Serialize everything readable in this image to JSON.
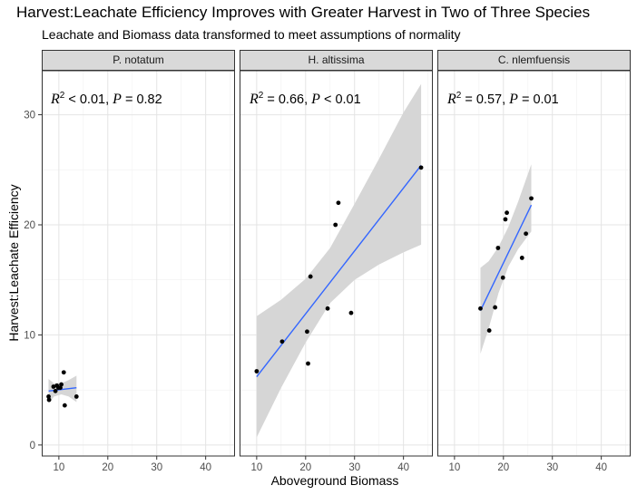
{
  "title": "Harvest:Leachate Efficiency Improves with Greater Harvest in Two of Three Species",
  "subtitle": "Leachate and Biomass data transformed to meet assumptions of normality",
  "chart_data": {
    "type": "scatter",
    "xlabel": "Aboveground Biomass",
    "ylabel": "Harvest:Leachate Efficiency",
    "xlim": [
      6.5,
      46
    ],
    "ylim": [
      -1,
      34
    ],
    "xticks": [
      10,
      20,
      30,
      40
    ],
    "yticks": [
      0,
      10,
      20,
      30
    ],
    "grid": true,
    "smooth": "linear fit with confidence band",
    "colors": {
      "fit_line": "#3366ff",
      "band": "#d6d6d6",
      "points": "#000000",
      "strip_bg": "#d9d9d9"
    },
    "panels": [
      {
        "name": "P. notatum",
        "stat": {
          "r2_prefix": "R",
          "r2_exp": "2",
          "r2_text": " < 0.01, ",
          "p_label": "P",
          "p_text": " = 0.82"
        },
        "points": [
          [
            7.9,
            4.4
          ],
          [
            8.0,
            4.1
          ],
          [
            8.9,
            5.3
          ],
          [
            9.3,
            4.9
          ],
          [
            9.6,
            5.4
          ],
          [
            9.9,
            5.2
          ],
          [
            10.3,
            5.2
          ],
          [
            10.5,
            5.5
          ],
          [
            11.0,
            6.6
          ],
          [
            11.2,
            3.6
          ],
          [
            13.6,
            4.4
          ]
        ],
        "fit": {
          "x": [
            7.9,
            13.6
          ],
          "y": [
            4.9,
            5.2
          ]
        },
        "band": {
          "x": [
            7.9,
            9.0,
            10.5,
            12.0,
            13.6
          ],
          "lower": [
            3.8,
            4.4,
            4.6,
            4.4,
            3.9
          ],
          "upper": [
            6.0,
            5.6,
            5.6,
            5.9,
            6.3
          ]
        }
      },
      {
        "name": "H. altissima",
        "stat": {
          "r2_prefix": "R",
          "r2_exp": "2",
          "r2_text": " = 0.66, ",
          "p_label": "P",
          "p_text": " < 0.01"
        },
        "points": [
          [
            10.0,
            6.7
          ],
          [
            15.2,
            9.4
          ],
          [
            20.3,
            10.3
          ],
          [
            20.5,
            7.4
          ],
          [
            21.0,
            15.3
          ],
          [
            24.5,
            12.4
          ],
          [
            26.1,
            20.0
          ],
          [
            26.7,
            22.0
          ],
          [
            29.3,
            12.0
          ],
          [
            43.6,
            25.2
          ]
        ],
        "fit": {
          "x": [
            10.0,
            43.6
          ],
          "y": [
            6.2,
            25.4
          ]
        },
        "band": {
          "x": [
            10.0,
            15.0,
            20.0,
            25.0,
            30.0,
            35.0,
            40.0,
            43.6
          ],
          "lower": [
            0.7,
            5.2,
            9.3,
            12.9,
            15.0,
            16.4,
            17.5,
            18.2
          ],
          "upper": [
            11.7,
            13.2,
            15.1,
            17.9,
            21.9,
            26.0,
            30.2,
            32.8
          ]
        }
      },
      {
        "name": "C. nlemfuensis",
        "stat": {
          "r2_prefix": "R",
          "r2_exp": "2",
          "r2_text": " = 0.57, ",
          "p_label": "P",
          "p_text": " = 0.01"
        },
        "points": [
          [
            15.3,
            12.4
          ],
          [
            17.1,
            10.4
          ],
          [
            18.3,
            12.5
          ],
          [
            18.9,
            17.9
          ],
          [
            19.9,
            15.2
          ],
          [
            20.4,
            20.5
          ],
          [
            20.7,
            21.1
          ],
          [
            23.8,
            17.0
          ],
          [
            24.6,
            19.2
          ],
          [
            25.7,
            22.4
          ]
        ],
        "fit": {
          "x": [
            15.3,
            25.7
          ],
          "y": [
            12.2,
            21.8
          ]
        },
        "band": {
          "x": [
            15.3,
            17.0,
            19.0,
            21.0,
            23.0,
            25.7
          ],
          "lower": [
            8.3,
            10.6,
            13.8,
            16.2,
            17.8,
            19.4
          ],
          "upper": [
            16.1,
            16.7,
            18.0,
            19.8,
            22.1,
            25.5
          ]
        }
      }
    ]
  }
}
